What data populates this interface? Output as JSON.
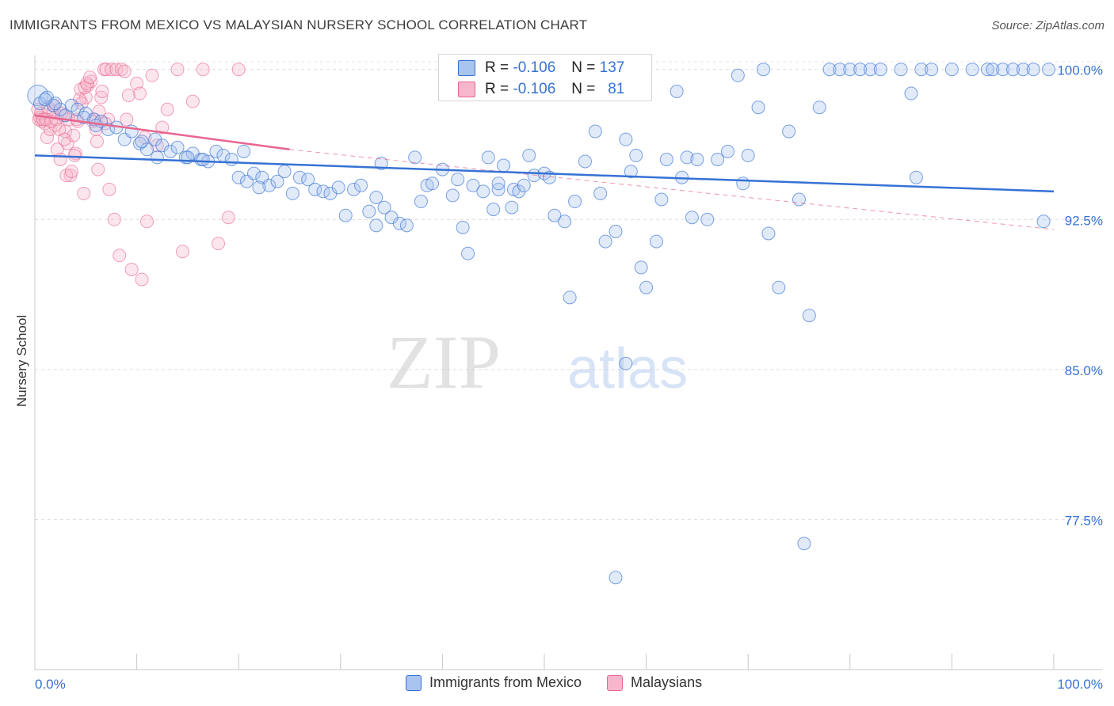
{
  "title": "IMMIGRANTS FROM MEXICO VS MALAYSIAN NURSERY SCHOOL CORRELATION CHART",
  "source": "Source: ZipAtlas.com",
  "watermark": {
    "zip": "ZIP",
    "atlas": "atlas"
  },
  "colors": {
    "blue": "#3672d4",
    "blue_fill": "#a9c4ee",
    "pink": "#e8668f",
    "pink_fill": "#f7b6cb",
    "axis_label": "#3672d4",
    "grid": "#dadada"
  },
  "stats": {
    "rows": [
      {
        "r_label": "R =",
        "r_value": "-0.106",
        "n_label": "N =",
        "n_value": "137"
      },
      {
        "r_label": "R =",
        "r_value": "-0.106",
        "n_label": "N =",
        "n_value": "81"
      }
    ]
  },
  "legend": {
    "items": [
      {
        "label": "Immigrants from Mexico"
      },
      {
        "label": "Malaysians"
      }
    ]
  },
  "chart_data": {
    "type": "scatter",
    "title": "IMMIGRANTS FROM MEXICO VS MALAYSIAN NURSERY SCHOOL CORRELATION CHART",
    "xlabel": "",
    "ylabel": "Nursery School",
    "xlim": [
      0,
      100
    ],
    "ylim": [
      70.0,
      100.7
    ],
    "x_tick_labels": [
      "0.0%",
      "100.0%"
    ],
    "y_ticks": [
      100.0,
      92.5,
      85.0,
      77.5
    ],
    "y_tick_labels": [
      "100.0%",
      "92.5%",
      "85.0%",
      "77.5%"
    ],
    "series": [
      {
        "name": "Immigrants from Mexico",
        "color": "#3672d4",
        "trend": {
          "x": [
            0,
            100
          ],
          "y": [
            95.7,
            93.9
          ],
          "style": "solid"
        },
        "points": [
          [
            0.3,
            98.7
          ],
          [
            0.5,
            98.3
          ],
          [
            1.2,
            98.6
          ],
          [
            1.8,
            98.2
          ],
          [
            2.5,
            98.0
          ],
          [
            3.0,
            97.7
          ],
          [
            3.6,
            98.2
          ],
          [
            4.2,
            98.0
          ],
          [
            5.0,
            97.8
          ],
          [
            5.8,
            97.5
          ],
          [
            6.5,
            97.4
          ],
          [
            7.2,
            97.0
          ],
          [
            8.0,
            97.1
          ],
          [
            8.8,
            96.5
          ],
          [
            9.5,
            96.9
          ],
          [
            10.3,
            96.3
          ],
          [
            11.0,
            96.0
          ],
          [
            11.8,
            96.5
          ],
          [
            12.5,
            96.2
          ],
          [
            13.3,
            95.9
          ],
          [
            14.0,
            96.1
          ],
          [
            14.8,
            95.6
          ],
          [
            15.5,
            95.8
          ],
          [
            16.3,
            95.5
          ],
          [
            17.0,
            95.4
          ],
          [
            17.8,
            95.9
          ],
          [
            18.5,
            95.7
          ],
          [
            19.3,
            95.5
          ],
          [
            20.0,
            94.6
          ],
          [
            20.8,
            94.4
          ],
          [
            21.5,
            94.8
          ],
          [
            22.3,
            94.6
          ],
          [
            23.0,
            94.2
          ],
          [
            23.8,
            94.4
          ],
          [
            24.5,
            94.9
          ],
          [
            25.3,
            93.8
          ],
          [
            26.0,
            94.6
          ],
          [
            26.8,
            94.5
          ],
          [
            27.5,
            94.0
          ],
          [
            28.3,
            93.9
          ],
          [
            29.0,
            93.8
          ],
          [
            29.8,
            94.1
          ],
          [
            30.5,
            92.7
          ],
          [
            31.3,
            94.0
          ],
          [
            32.0,
            94.2
          ],
          [
            32.8,
            92.9
          ],
          [
            33.5,
            93.6
          ],
          [
            34.3,
            93.1
          ],
          [
            35.0,
            92.6
          ],
          [
            35.8,
            92.3
          ],
          [
            36.5,
            92.2
          ],
          [
            37.3,
            95.6
          ],
          [
            37.9,
            93.4
          ],
          [
            38.5,
            94.2
          ],
          [
            39.0,
            94.3
          ],
          [
            40.0,
            95.0
          ],
          [
            41.0,
            93.7
          ],
          [
            41.5,
            94.5
          ],
          [
            42.0,
            92.1
          ],
          [
            42.5,
            90.8
          ],
          [
            43.0,
            94.2
          ],
          [
            44.0,
            93.9
          ],
          [
            44.5,
            95.6
          ],
          [
            45.0,
            93.0
          ],
          [
            45.5,
            94.0
          ],
          [
            46.0,
            95.2
          ],
          [
            47.0,
            94.0
          ],
          [
            47.5,
            93.9
          ],
          [
            48.0,
            94.2
          ],
          [
            48.5,
            95.7
          ],
          [
            49.0,
            94.7
          ],
          [
            50.0,
            94.8
          ],
          [
            50.5,
            94.6
          ],
          [
            51.0,
            92.7
          ],
          [
            52.0,
            92.4
          ],
          [
            52.5,
            88.6
          ],
          [
            53.0,
            93.4
          ],
          [
            54.0,
            95.4
          ],
          [
            55.0,
            96.9
          ],
          [
            55.5,
            93.8
          ],
          [
            56.0,
            91.4
          ],
          [
            57.0,
            91.9
          ],
          [
            58.0,
            96.5
          ],
          [
            58.5,
            94.9
          ],
          [
            59.0,
            95.7
          ],
          [
            59.5,
            90.1
          ],
          [
            60.0,
            89.1
          ],
          [
            61.0,
            91.4
          ],
          [
            61.5,
            93.5
          ],
          [
            62.0,
            95.5
          ],
          [
            63.0,
            98.9
          ],
          [
            63.5,
            94.6
          ],
          [
            64.0,
            95.6
          ],
          [
            64.5,
            92.6
          ],
          [
            65.0,
            95.5
          ],
          [
            66.0,
            92.5
          ],
          [
            67.0,
            95.5
          ],
          [
            68.0,
            95.9
          ],
          [
            69.0,
            99.7
          ],
          [
            69.5,
            94.3
          ],
          [
            70.0,
            95.7
          ],
          [
            71.0,
            98.1
          ],
          [
            71.5,
            100.0
          ],
          [
            72.0,
            91.8
          ],
          [
            73.0,
            89.1
          ],
          [
            74.0,
            96.9
          ],
          [
            75.0,
            93.5
          ],
          [
            75.5,
            76.3
          ],
          [
            76.0,
            87.7
          ],
          [
            77.0,
            98.1
          ],
          [
            78.0,
            100.0
          ],
          [
            79.0,
            100.0
          ],
          [
            80.0,
            100.0
          ],
          [
            81.0,
            100.0
          ],
          [
            82.0,
            100.0
          ],
          [
            83.0,
            100.0
          ],
          [
            85.0,
            100.0
          ],
          [
            86.0,
            98.8
          ],
          [
            86.5,
            94.6
          ],
          [
            87.0,
            100.0
          ],
          [
            88.0,
            100.0
          ],
          [
            90.0,
            100.0
          ],
          [
            92.0,
            100.0
          ],
          [
            93.5,
            100.0
          ],
          [
            94.0,
            100.0
          ],
          [
            95.0,
            100.0
          ],
          [
            96.0,
            100.0
          ],
          [
            97.0,
            100.0
          ],
          [
            98.0,
            100.0
          ],
          [
            99.0,
            92.4
          ],
          [
            99.5,
            100.0
          ],
          [
            58.0,
            85.3
          ],
          [
            57.0,
            74.6
          ],
          [
            34.0,
            95.3
          ],
          [
            20.5,
            95.9
          ],
          [
            10.5,
            96.4
          ],
          [
            6.0,
            97.2
          ],
          [
            4.8,
            97.6
          ],
          [
            2.0,
            98.3
          ],
          [
            1.0,
            98.5
          ],
          [
            33.5,
            92.2
          ],
          [
            45.5,
            94.3
          ],
          [
            46.8,
            93.1
          ],
          [
            12.0,
            95.6
          ],
          [
            15.0,
            95.6
          ],
          [
            16.5,
            95.5
          ],
          [
            22.0,
            94.1
          ]
        ]
      },
      {
        "name": "Malaysians",
        "color": "#e8668f",
        "trend": {
          "x": [
            0,
            25
          ],
          "y": [
            97.7,
            96.0
          ],
          "style": "solid",
          "extension": {
            "x": [
              25,
              100
            ],
            "y": [
              96.0,
              92.0
            ],
            "style": "dashed"
          }
        },
        "points": [
          [
            0.3,
            98.0
          ],
          [
            0.5,
            97.6
          ],
          [
            0.7,
            97.4
          ],
          [
            1.0,
            97.3
          ],
          [
            1.2,
            96.6
          ],
          [
            1.5,
            97.0
          ],
          [
            1.8,
            97.9
          ],
          [
            2.0,
            97.2
          ],
          [
            2.2,
            96.0
          ],
          [
            2.5,
            95.5
          ],
          [
            2.8,
            97.7
          ],
          [
            3.0,
            96.9
          ],
          [
            3.2,
            96.3
          ],
          [
            3.5,
            94.7
          ],
          [
            3.8,
            96.7
          ],
          [
            4.0,
            95.8
          ],
          [
            4.2,
            97.4
          ],
          [
            4.5,
            99.0
          ],
          [
            4.8,
            93.8
          ],
          [
            5.0,
            98.6
          ],
          [
            5.2,
            99.2
          ],
          [
            5.5,
            99.4
          ],
          [
            5.8,
            97.5
          ],
          [
            6.0,
            97.0
          ],
          [
            6.2,
            95.0
          ],
          [
            6.5,
            98.6
          ],
          [
            6.8,
            100.0
          ],
          [
            7.0,
            100.0
          ],
          [
            7.2,
            97.5
          ],
          [
            7.5,
            100.0
          ],
          [
            7.8,
            92.5
          ],
          [
            8.0,
            100.0
          ],
          [
            8.3,
            90.7
          ],
          [
            8.5,
            100.0
          ],
          [
            8.8,
            99.9
          ],
          [
            9.0,
            97.5
          ],
          [
            9.5,
            90.0
          ],
          [
            10.0,
            99.3
          ],
          [
            10.3,
            98.8
          ],
          [
            10.5,
            89.5
          ],
          [
            10.8,
            96.6
          ],
          [
            11.0,
            92.4
          ],
          [
            11.5,
            99.7
          ],
          [
            12.0,
            96.2
          ],
          [
            13.0,
            98.0
          ],
          [
            14.0,
            100.0
          ],
          [
            14.5,
            90.9
          ],
          [
            15.5,
            98.4
          ],
          [
            16.5,
            100.0
          ],
          [
            18.0,
            91.3
          ],
          [
            19.0,
            92.6
          ],
          [
            20.0,
            100.0
          ],
          [
            0.4,
            97.5
          ],
          [
            0.6,
            97.8
          ],
          [
            0.8,
            97.5
          ],
          [
            1.1,
            97.5
          ],
          [
            1.3,
            98.1
          ],
          [
            1.6,
            97.4
          ],
          [
            1.9,
            98.2
          ],
          [
            2.1,
            97.5
          ],
          [
            2.4,
            97.0
          ],
          [
            2.6,
            97.8
          ],
          [
            2.9,
            96.5
          ],
          [
            3.1,
            94.7
          ],
          [
            3.3,
            97.5
          ],
          [
            3.6,
            94.9
          ],
          [
            3.9,
            95.7
          ],
          [
            4.1,
            97.5
          ],
          [
            4.4,
            98.5
          ],
          [
            4.6,
            98.3
          ],
          [
            4.9,
            99.1
          ],
          [
            5.1,
            99.3
          ],
          [
            5.4,
            99.6
          ],
          [
            5.7,
            97.4
          ],
          [
            6.1,
            96.4
          ],
          [
            6.3,
            97.9
          ],
          [
            6.6,
            98.9
          ],
          [
            6.9,
            97.3
          ],
          [
            7.3,
            94.0
          ],
          [
            9.2,
            98.7
          ],
          [
            12.5,
            97.1
          ]
        ]
      }
    ]
  }
}
